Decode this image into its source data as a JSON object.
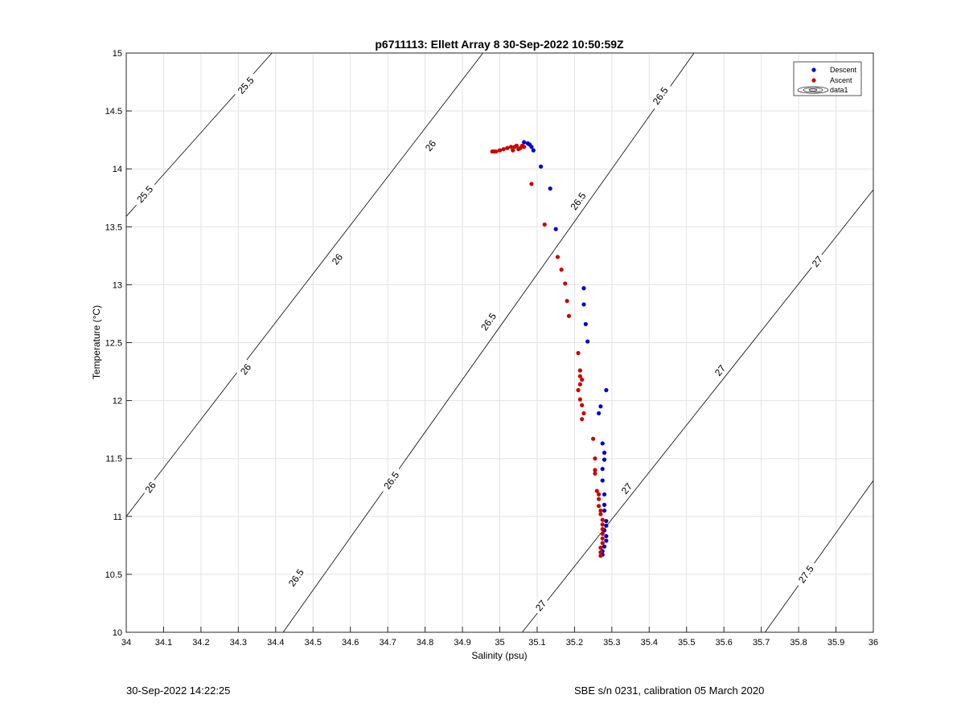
{
  "chart_data": {
    "type": "scatter",
    "title": "p6711113: Ellett Array 8 30-Sep-2022 10:50:59Z",
    "xlabel": "Salinity (psu)",
    "ylabel": "Temperature (°C)",
    "xlim": [
      34,
      36
    ],
    "ylim": [
      10,
      15
    ],
    "xticks": [
      34,
      34.1,
      34.2,
      34.3,
      34.4,
      34.5,
      34.6,
      34.7,
      34.8,
      34.9,
      35,
      35.1,
      35.2,
      35.3,
      35.4,
      35.5,
      35.6,
      35.7,
      35.8,
      35.9,
      36
    ],
    "xtick_labels": [
      "34",
      "34.1",
      "34.2",
      "34.3",
      "34.4",
      "34.5",
      "34.6",
      "34.7",
      "34.8",
      "34.9",
      "35",
      "35.1",
      "35.2",
      "35.3",
      "35.4",
      "35.5",
      "35.6",
      "35.7",
      "35.8",
      "35.9",
      "36"
    ],
    "yticks": [
      10,
      10.5,
      11,
      11.5,
      12,
      12.5,
      13,
      13.5,
      14,
      14.5,
      15
    ],
    "ytick_labels": [
      "10",
      "10.5",
      "11",
      "11.5",
      "12",
      "12.5",
      "13",
      "13.5",
      "14",
      "14.5",
      "15"
    ],
    "grid": true,
    "legend_position": "top-right",
    "series": [
      {
        "name": "Descent",
        "color": "#0000cc",
        "points": [
          [
            35.065,
            14.23
          ],
          [
            35.075,
            14.22
          ],
          [
            35.08,
            14.21
          ],
          [
            35.085,
            14.19
          ],
          [
            35.09,
            14.16
          ],
          [
            35.11,
            14.02
          ],
          [
            35.135,
            13.83
          ],
          [
            35.15,
            13.48
          ],
          [
            35.225,
            12.97
          ],
          [
            35.225,
            12.83
          ],
          [
            35.23,
            12.66
          ],
          [
            35.235,
            12.51
          ],
          [
            35.285,
            12.09
          ],
          [
            35.27,
            11.95
          ],
          [
            35.265,
            11.89
          ],
          [
            35.275,
            11.63
          ],
          [
            35.28,
            11.55
          ],
          [
            35.28,
            11.49
          ],
          [
            35.275,
            11.41
          ],
          [
            35.275,
            11.31
          ],
          [
            35.28,
            11.19
          ],
          [
            35.28,
            11.1
          ],
          [
            35.28,
            11.05
          ],
          [
            35.285,
            10.96
          ],
          [
            35.285,
            10.92
          ],
          [
            35.28,
            10.88
          ],
          [
            35.285,
            10.83
          ],
          [
            35.285,
            10.79
          ],
          [
            35.28,
            10.74
          ],
          [
            35.275,
            10.7
          ],
          [
            35.275,
            10.67
          ]
        ]
      },
      {
        "name": "Ascent",
        "color": "#cc0000",
        "points": [
          [
            34.98,
            14.15
          ],
          [
            34.985,
            14.15
          ],
          [
            34.99,
            14.15
          ],
          [
            35.0,
            14.16
          ],
          [
            35.01,
            14.17
          ],
          [
            35.02,
            14.18
          ],
          [
            35.03,
            14.19
          ],
          [
            35.035,
            14.16
          ],
          [
            35.04,
            14.19
          ],
          [
            35.045,
            14.2
          ],
          [
            35.05,
            14.17
          ],
          [
            35.055,
            14.18
          ],
          [
            35.06,
            14.2
          ],
          [
            35.065,
            14.19
          ],
          [
            35.085,
            13.87
          ],
          [
            35.12,
            13.52
          ],
          [
            35.155,
            13.24
          ],
          [
            35.165,
            13.13
          ],
          [
            35.175,
            13.01
          ],
          [
            35.18,
            12.86
          ],
          [
            35.185,
            12.73
          ],
          [
            35.21,
            12.41
          ],
          [
            35.215,
            12.26
          ],
          [
            35.215,
            12.21
          ],
          [
            35.22,
            12.18
          ],
          [
            35.215,
            12.14
          ],
          [
            35.21,
            12.09
          ],
          [
            35.215,
            12.01
          ],
          [
            35.22,
            11.96
          ],
          [
            35.225,
            11.89
          ],
          [
            35.22,
            11.84
          ],
          [
            35.25,
            11.67
          ],
          [
            35.255,
            11.5
          ],
          [
            35.255,
            11.4
          ],
          [
            35.255,
            11.37
          ],
          [
            35.26,
            11.22
          ],
          [
            35.265,
            11.19
          ],
          [
            35.265,
            11.15
          ],
          [
            35.265,
            11.09
          ],
          [
            35.27,
            11.05
          ],
          [
            35.27,
            11.02
          ],
          [
            35.275,
            10.97
          ],
          [
            35.275,
            10.93
          ],
          [
            35.275,
            10.89
          ],
          [
            35.275,
            10.85
          ],
          [
            35.275,
            10.81
          ],
          [
            35.275,
            10.77
          ],
          [
            35.27,
            10.73
          ],
          [
            35.27,
            10.69
          ],
          [
            35.27,
            10.66
          ]
        ]
      }
    ],
    "contour_series_name": "data1",
    "isopycnals": [
      {
        "level": "25.5",
        "line": [
          [
            34.0,
            13.59
          ],
          [
            34.39,
            15.0
          ]
        ],
        "labels": [
          {
            "text": "25.5",
            "x": 34.32,
            "y": 14.72
          },
          {
            "text": "25.5",
            "x": 34.05,
            "y": 13.78
          }
        ]
      },
      {
        "level": "26",
        "line": [
          [
            34.0,
            11.0
          ],
          [
            34.955,
            15.0
          ]
        ],
        "labels": [
          {
            "text": "26",
            "x": 34.815,
            "y": 14.2
          },
          {
            "text": "26",
            "x": 34.565,
            "y": 13.22
          },
          {
            "text": "26",
            "x": 34.32,
            "y": 12.27
          },
          {
            "text": "26",
            "x": 34.065,
            "y": 11.25
          }
        ]
      },
      {
        "level": "26.5",
        "line": [
          [
            34.42,
            10.0
          ],
          [
            35.52,
            15.0
          ]
        ],
        "labels": [
          {
            "text": "26.5",
            "x": 35.43,
            "y": 14.63
          },
          {
            "text": "26.5",
            "x": 35.21,
            "y": 13.72
          },
          {
            "text": "26.5",
            "x": 34.97,
            "y": 12.68
          },
          {
            "text": "26.5",
            "x": 34.71,
            "y": 11.31
          },
          {
            "text": "26.5",
            "x": 34.455,
            "y": 10.47
          }
        ]
      },
      {
        "level": "27",
        "line": [
          [
            35.06,
            10.0
          ],
          [
            36.0,
            13.82
          ]
        ],
        "labels": [
          {
            "text": "27",
            "x": 35.85,
            "y": 13.2
          },
          {
            "text": "27",
            "x": 35.59,
            "y": 12.26
          },
          {
            "text": "27",
            "x": 35.34,
            "y": 11.24
          },
          {
            "text": "27",
            "x": 35.11,
            "y": 10.23
          }
        ]
      },
      {
        "level": "27.5",
        "line": [
          [
            35.71,
            10.0
          ],
          [
            36.0,
            11.31
          ]
        ],
        "labels": [
          {
            "text": "27.5",
            "x": 35.82,
            "y": 10.5
          }
        ]
      }
    ]
  },
  "footer": {
    "left": "30-Sep-2022 14:22:25",
    "right": "SBE s/n 0231, calibration 05 March 2020"
  }
}
